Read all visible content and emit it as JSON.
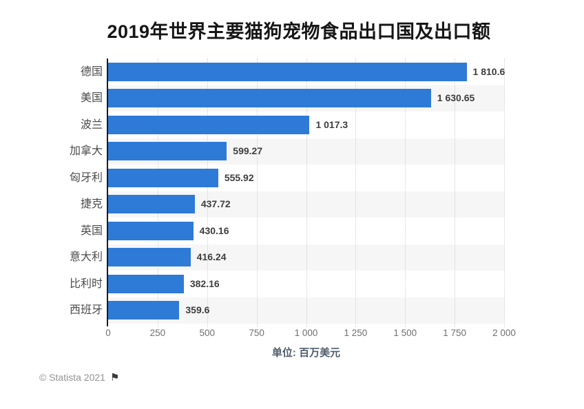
{
  "page": {
    "background": "#ffffff"
  },
  "chart_data": {
    "type": "bar",
    "orientation": "horizontal",
    "title": "2019年世界主要猫狗宠物食品出口国及出口额",
    "categories": [
      "德国",
      "美国",
      "波兰",
      "加拿大",
      "匈牙利",
      "捷克",
      "英国",
      "意大利",
      "比利时",
      "西班牙"
    ],
    "values": [
      1810.6,
      1630.65,
      1017.3,
      599.27,
      555.92,
      437.72,
      430.16,
      416.24,
      382.16,
      359.6
    ],
    "value_labels": [
      "1 810.6",
      "1 630.65",
      "1 017.3",
      "599.27",
      "555.92",
      "437.72",
      "430.16",
      "416.24",
      "382.16",
      "359.6"
    ],
    "xlabel": "单位: 百万美元",
    "xlim": [
      0,
      2000
    ],
    "xticks": [
      0,
      250,
      500,
      750,
      1000,
      1250,
      1500,
      1750,
      2000
    ],
    "xtick_labels": [
      "0",
      "250",
      "500",
      "750",
      "1 000",
      "1 250",
      "1 500",
      "1 750",
      "2 000"
    ],
    "grid": "vertical-dotted",
    "legend": "none",
    "bar_color": "#2e7ad7",
    "stripe_color": "#f6f6f7",
    "axis_line_color": "#1b1b1b"
  },
  "footer": {
    "copyright": "© Statista 2021",
    "flag_icon": "⚑"
  }
}
